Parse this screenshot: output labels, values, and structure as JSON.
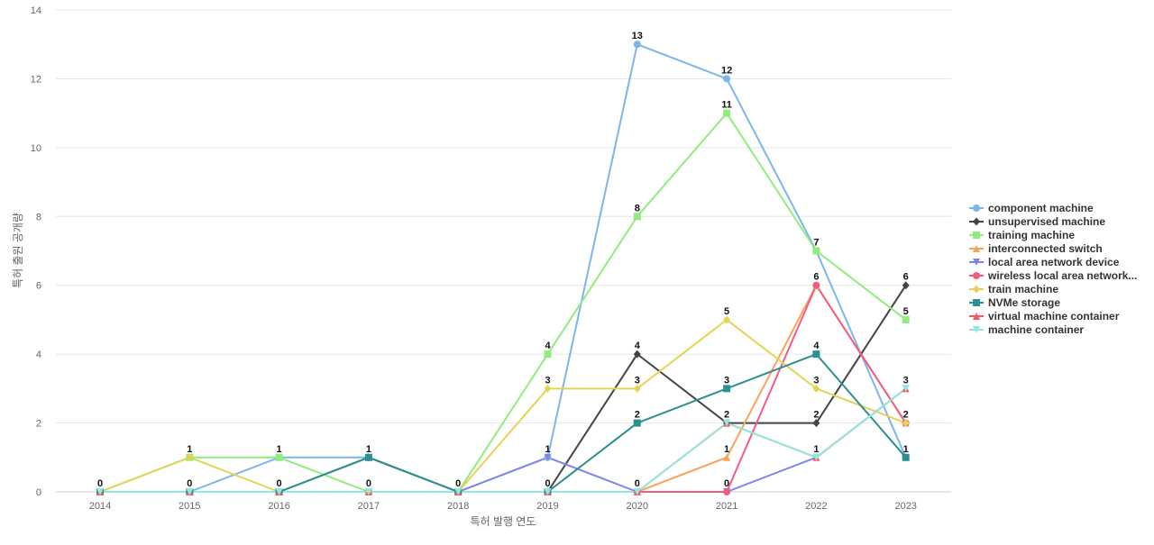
{
  "chart_data": {
    "type": "line",
    "title": "",
    "xlabel": "특허 발행 연도",
    "ylabel": "특허 출원 공개량",
    "x": [
      "2014",
      "2015",
      "2016",
      "2017",
      "2018",
      "2019",
      "2020",
      "2021",
      "2022",
      "2023"
    ],
    "ylim": [
      0,
      14
    ],
    "yticks": [
      0,
      2,
      4,
      6,
      8,
      10,
      12,
      14
    ],
    "grid": true,
    "legend_position": "right",
    "series": [
      {
        "name": "component machine",
        "color": "#7cb5ec",
        "marker": "circle",
        "values": [
          0,
          0,
          1,
          1,
          0,
          1,
          13,
          12,
          7,
          1
        ]
      },
      {
        "name": "unsupervised machine",
        "color": "#434348",
        "marker": "diamond",
        "values": [
          0,
          0,
          0,
          1,
          0,
          0,
          4,
          2,
          2,
          6
        ]
      },
      {
        "name": "training machine",
        "color": "#90ed7d",
        "marker": "square",
        "values": [
          0,
          1,
          1,
          0,
          0,
          4,
          8,
          11,
          7,
          5
        ]
      },
      {
        "name": "interconnected switch",
        "color": "#f7a35c",
        "marker": "triangle",
        "values": [
          0,
          0,
          0,
          0,
          0,
          0,
          0,
          1,
          6,
          2
        ]
      },
      {
        "name": "local area network device",
        "color": "#8085e9",
        "marker": "triangle-down",
        "values": [
          0,
          0,
          0,
          0,
          0,
          1,
          0,
          0,
          1,
          3
        ]
      },
      {
        "name": "wireless local area network...",
        "color": "#f15c80",
        "marker": "circle",
        "values": [
          0,
          0,
          0,
          0,
          0,
          0,
          0,
          0,
          6,
          2
        ]
      },
      {
        "name": "train machine",
        "color": "#e4d354",
        "marker": "diamond",
        "values": [
          0,
          1,
          0,
          0,
          0,
          3,
          3,
          5,
          3,
          2
        ]
      },
      {
        "name": "NVMe storage",
        "color": "#2b908f",
        "marker": "square",
        "values": [
          0,
          0,
          0,
          1,
          0,
          0,
          2,
          3,
          4,
          1
        ]
      },
      {
        "name": "virtual machine container",
        "color": "#f45b5b",
        "marker": "triangle",
        "values": [
          0,
          0,
          0,
          0,
          0,
          0,
          0,
          2,
          1,
          3
        ]
      },
      {
        "name": "machine container",
        "color": "#91e8e1",
        "marker": "triangle-down",
        "values": [
          0,
          0,
          0,
          0,
          0,
          0,
          0,
          2,
          1,
          3
        ]
      }
    ],
    "data_labels": [
      {
        "x": "2014",
        "value": 0
      },
      {
        "x": "2015",
        "value": 1
      },
      {
        "x": "2015",
        "value": 0
      },
      {
        "x": "2016",
        "value": 1
      },
      {
        "x": "2016",
        "value": 0
      },
      {
        "x": "2017",
        "value": 1
      },
      {
        "x": "2017",
        "value": 0
      },
      {
        "x": "2018",
        "value": 0
      },
      {
        "x": "2019",
        "value": 4
      },
      {
        "x": "2019",
        "value": 3
      },
      {
        "x": "2019",
        "value": 1
      },
      {
        "x": "2019",
        "value": 0
      },
      {
        "x": "2020",
        "value": 13
      },
      {
        "x": "2020",
        "value": 8
      },
      {
        "x": "2020",
        "value": 4
      },
      {
        "x": "2020",
        "value": 3
      },
      {
        "x": "2020",
        "value": 2
      },
      {
        "x": "2020",
        "value": 0
      },
      {
        "x": "2021",
        "value": 12
      },
      {
        "x": "2021",
        "value": 11
      },
      {
        "x": "2021",
        "value": 5
      },
      {
        "x": "2021",
        "value": 3
      },
      {
        "x": "2021",
        "value": 2
      },
      {
        "x": "2021",
        "value": 1
      },
      {
        "x": "2021",
        "value": 0
      },
      {
        "x": "2022",
        "value": 7
      },
      {
        "x": "2022",
        "value": 6
      },
      {
        "x": "2022",
        "value": 4
      },
      {
        "x": "2022",
        "value": 3
      },
      {
        "x": "2022",
        "value": 2
      },
      {
        "x": "2022",
        "value": 1
      },
      {
        "x": "2023",
        "value": 6
      },
      {
        "x": "2023",
        "value": 5
      },
      {
        "x": "2023",
        "value": 3
      },
      {
        "x": "2023",
        "value": 2
      },
      {
        "x": "2023",
        "value": 1
      }
    ]
  }
}
